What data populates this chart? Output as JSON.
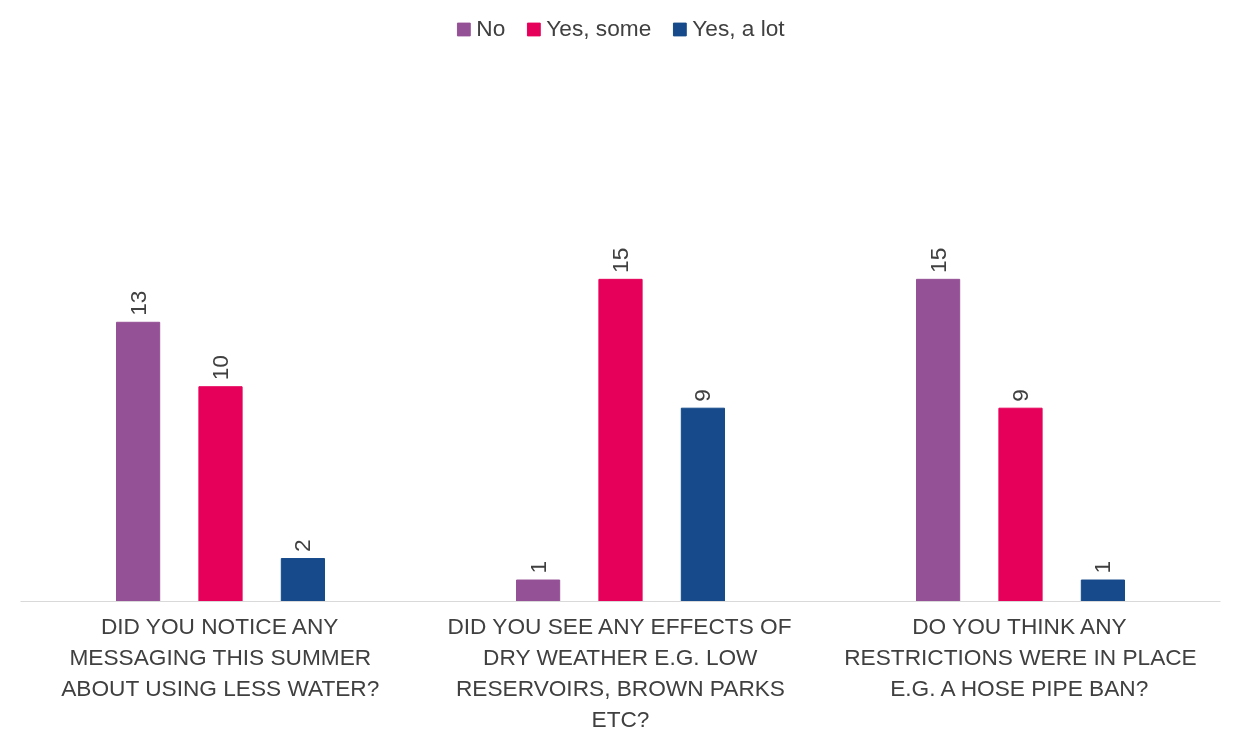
{
  "chart_data": {
    "type": "bar",
    "categories": [
      "DID YOU NOTICE ANY MESSAGING THIS SUMMER ABOUT USING LESS WATER?",
      "DID YOU SEE ANY EFFECTS OF DRY WEATHER E.G. LOW RESERVOIRS, BROWN PARKS ETC?",
      "DO YOU THINK ANY RESTRICTIONS WERE IN PLACE E.G. A HOSE PIPE BAN?"
    ],
    "series": [
      {
        "name": "No",
        "color": "#955196",
        "values": [
          13,
          1,
          15
        ]
      },
      {
        "name": "Yes, some",
        "color": "#e6005a",
        "values": [
          10,
          15,
          9
        ]
      },
      {
        "name": "Yes, a lot",
        "color": "#164a8b",
        "values": [
          2,
          9,
          1
        ]
      }
    ],
    "data_labels": true,
    "legend": "top",
    "grid": false
  }
}
